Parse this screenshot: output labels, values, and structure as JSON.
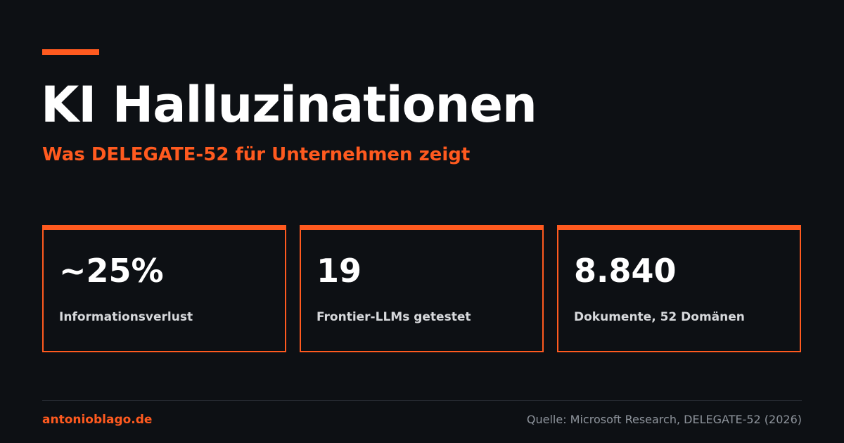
{
  "header": {
    "title": "KI Halluzinationen",
    "subtitle": "Was DELEGATE-52 für Unternehmen zeigt"
  },
  "stats": [
    {
      "value": "~25%",
      "label": "Informationsverlust"
    },
    {
      "value": "19",
      "label": "Frontier-LLMs getestet"
    },
    {
      "value": "8.840",
      "label": "Dokumente, 52 Domänen"
    }
  ],
  "footer": {
    "site": "antonioblago.de",
    "source": "Quelle: Microsoft Research, DELEGATE-52 (2026)"
  },
  "colors": {
    "background": "#0d1014",
    "accent": "#ff5a1f",
    "text": "#ffffff",
    "muted": "#8e949c"
  }
}
